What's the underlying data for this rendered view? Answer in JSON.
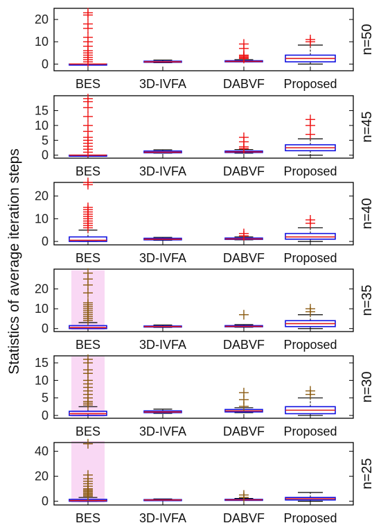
{
  "figure": {
    "ylabel": "Statistics of average iteration steps"
  },
  "colors": {
    "box": "#1010e0",
    "median": "#e01818",
    "outlier_red": "#ee1111",
    "outlier_dark": "#8a5a10",
    "haze": "#f6c8ef",
    "axis": "#000000"
  },
  "chart_data": [
    {
      "type": "box",
      "panel_label": "n=50",
      "categories": [
        "BES",
        "3D-IVFA",
        "DABVF",
        "Proposed"
      ],
      "yticks": [
        0,
        10,
        20
      ],
      "ylim": [
        -3,
        25
      ],
      "outlier_style": "red",
      "boxes": [
        {
          "category": "BES",
          "q1": 0,
          "median": 0,
          "q3": 0,
          "whisker_low": 0,
          "whisker_high": 0,
          "outliers": [
            1,
            2,
            3,
            4,
            5,
            6,
            8,
            10,
            12,
            16,
            18,
            22,
            23
          ]
        },
        {
          "category": "3D-IVFA",
          "q1": 0.8,
          "median": 1.0,
          "q3": 1.3,
          "whisker_low": 0.6,
          "whisker_high": 1.8,
          "outliers": []
        },
        {
          "category": "DABVF",
          "q1": 1.0,
          "median": 1.2,
          "q3": 1.5,
          "whisker_low": 1.0,
          "whisker_high": 2.0,
          "outliers": [
            2.5,
            3,
            3.5,
            4,
            7,
            9
          ]
        },
        {
          "category": "Proposed",
          "q1": 1.0,
          "median": 2.5,
          "q3": 4.0,
          "whisker_low": 0,
          "whisker_high": 8.5,
          "outliers": [
            10,
            11
          ]
        }
      ]
    },
    {
      "type": "box",
      "panel_label": "n=45",
      "categories": [
        "BES",
        "3D-IVFA",
        "DABVF",
        "Proposed"
      ],
      "yticks": [
        0,
        5,
        10,
        15
      ],
      "ylim": [
        -1,
        20
      ],
      "outlier_style": "red",
      "boxes": [
        {
          "category": "BES",
          "q1": 0,
          "median": 0,
          "q3": 0,
          "whisker_low": 0,
          "whisker_high": 0,
          "outliers": [
            1,
            2,
            3,
            4,
            5,
            6,
            8,
            10,
            13,
            16,
            18,
            19
          ]
        },
        {
          "category": "3D-IVFA",
          "q1": 0.8,
          "median": 1.0,
          "q3": 1.4,
          "whisker_low": 0.7,
          "whisker_high": 1.8,
          "outliers": []
        },
        {
          "category": "DABVF",
          "q1": 0.9,
          "median": 1.1,
          "q3": 1.4,
          "whisker_low": 0.7,
          "whisker_high": 1.9,
          "outliers": [
            2.2,
            2.8,
            4.5,
            6
          ]
        },
        {
          "category": "Proposed",
          "q1": 1.5,
          "median": 2.5,
          "q3": 3.5,
          "whisker_low": 0,
          "whisker_high": 5.5,
          "outliers": [
            7,
            10,
            12
          ]
        }
      ]
    },
    {
      "type": "box",
      "panel_label": "n=40",
      "categories": [
        "BES",
        "3D-IVFA",
        "DABVF",
        "Proposed"
      ],
      "yticks": [
        0,
        10,
        20
      ],
      "ylim": [
        -1.5,
        26
      ],
      "outlier_style": "red",
      "boxes": [
        {
          "category": "BES",
          "q1": 0,
          "median": 0.5,
          "q3": 2,
          "whisker_low": 0,
          "whisker_high": 5,
          "outliers": [
            6,
            7,
            8,
            9,
            10,
            11,
            12,
            13,
            14,
            15,
            25,
            26
          ]
        },
        {
          "category": "3D-IVFA",
          "q1": 0.7,
          "median": 1.0,
          "q3": 1.4,
          "whisker_low": 0.5,
          "whisker_high": 1.8,
          "outliers": []
        },
        {
          "category": "DABVF",
          "q1": 0.9,
          "median": 1.1,
          "q3": 1.5,
          "whisker_low": 0.7,
          "whisker_high": 2.0,
          "outliers": [
            2.5,
            3.5
          ]
        },
        {
          "category": "Proposed",
          "q1": 1.0,
          "median": 2.0,
          "q3": 3.5,
          "whisker_low": 0,
          "whisker_high": 6,
          "outliers": [
            8,
            9.5
          ]
        }
      ]
    },
    {
      "type": "box",
      "panel_label": "n=35",
      "categories": [
        "BES",
        "3D-IVFA",
        "DABVF",
        "Proposed"
      ],
      "yticks": [
        0,
        10,
        20
      ],
      "ylim": [
        -1.5,
        30
      ],
      "outlier_style": "dark",
      "boxes": [
        {
          "category": "BES",
          "q1": 0,
          "median": 0.5,
          "q3": 1.5,
          "whisker_low": 0,
          "whisker_high": 3,
          "outliers": [
            4,
            5,
            6,
            7,
            8,
            9,
            10,
            11,
            12,
            13,
            18,
            22,
            25,
            28
          ]
        },
        {
          "category": "3D-IVFA",
          "q1": 0.8,
          "median": 1.0,
          "q3": 1.3,
          "whisker_low": 0.6,
          "whisker_high": 1.8,
          "outliers": []
        },
        {
          "category": "DABVF",
          "q1": 0.9,
          "median": 1.1,
          "q3": 1.5,
          "whisker_low": 0.7,
          "whisker_high": 2.0,
          "outliers": [
            7
          ]
        },
        {
          "category": "Proposed",
          "q1": 1.0,
          "median": 2.5,
          "q3": 4.0,
          "whisker_low": 0,
          "whisker_high": 7,
          "outliers": [
            8.5,
            10
          ]
        }
      ]
    },
    {
      "type": "box",
      "panel_label": "n=30",
      "categories": [
        "BES",
        "3D-IVFA",
        "DABVF",
        "Proposed"
      ],
      "yticks": [
        0,
        5,
        10,
        15
      ],
      "ylim": [
        -0.8,
        17
      ],
      "outlier_style": "dark",
      "boxes": [
        {
          "category": "BES",
          "q1": 0,
          "median": 0.5,
          "q3": 1.2,
          "whisker_low": 0,
          "whisker_high": 2.5,
          "outliers": [
            3,
            3.5,
            4,
            5,
            6,
            7,
            8,
            9,
            10,
            12,
            13,
            15,
            16
          ]
        },
        {
          "category": "3D-IVFA",
          "q1": 0.8,
          "median": 1.0,
          "q3": 1.3,
          "whisker_low": 0.6,
          "whisker_high": 1.8,
          "outliers": []
        },
        {
          "category": "DABVF",
          "q1": 1.0,
          "median": 1.3,
          "q3": 1.7,
          "whisker_low": 0.8,
          "whisker_high": 2.2,
          "outliers": [
            2.6,
            4.5,
            6.5
          ]
        },
        {
          "category": "Proposed",
          "q1": 0.5,
          "median": 1.5,
          "q3": 2.5,
          "whisker_low": 0,
          "whisker_high": 5,
          "outliers": [
            6,
            7
          ]
        }
      ]
    },
    {
      "type": "box",
      "panel_label": "n=25",
      "categories": [
        "BES",
        "3D-IVFA",
        "DABVF",
        "Proposed"
      ],
      "yticks": [
        0,
        20,
        40
      ],
      "ylim": [
        -3,
        47
      ],
      "outlier_style": "dark",
      "boxes": [
        {
          "category": "BES",
          "q1": 0,
          "median": 0.5,
          "q3": 1.5,
          "whisker_low": 0,
          "whisker_high": 3,
          "outliers": [
            4,
            5,
            6,
            7,
            8,
            9,
            10,
            12,
            14,
            16,
            18,
            21,
            46
          ]
        },
        {
          "category": "3D-IVFA",
          "q1": 0.8,
          "median": 1.0,
          "q3": 1.3,
          "whisker_low": 0.6,
          "whisker_high": 1.8,
          "outliers": []
        },
        {
          "category": "DABVF",
          "q1": 0.9,
          "median": 1.1,
          "q3": 1.5,
          "whisker_low": 0.7,
          "whisker_high": 2.2,
          "outliers": [
            3,
            5
          ]
        },
        {
          "category": "Proposed",
          "q1": 1.0,
          "median": 2.0,
          "q3": 3.0,
          "whisker_low": 0,
          "whisker_high": 7,
          "outliers": []
        }
      ]
    }
  ]
}
